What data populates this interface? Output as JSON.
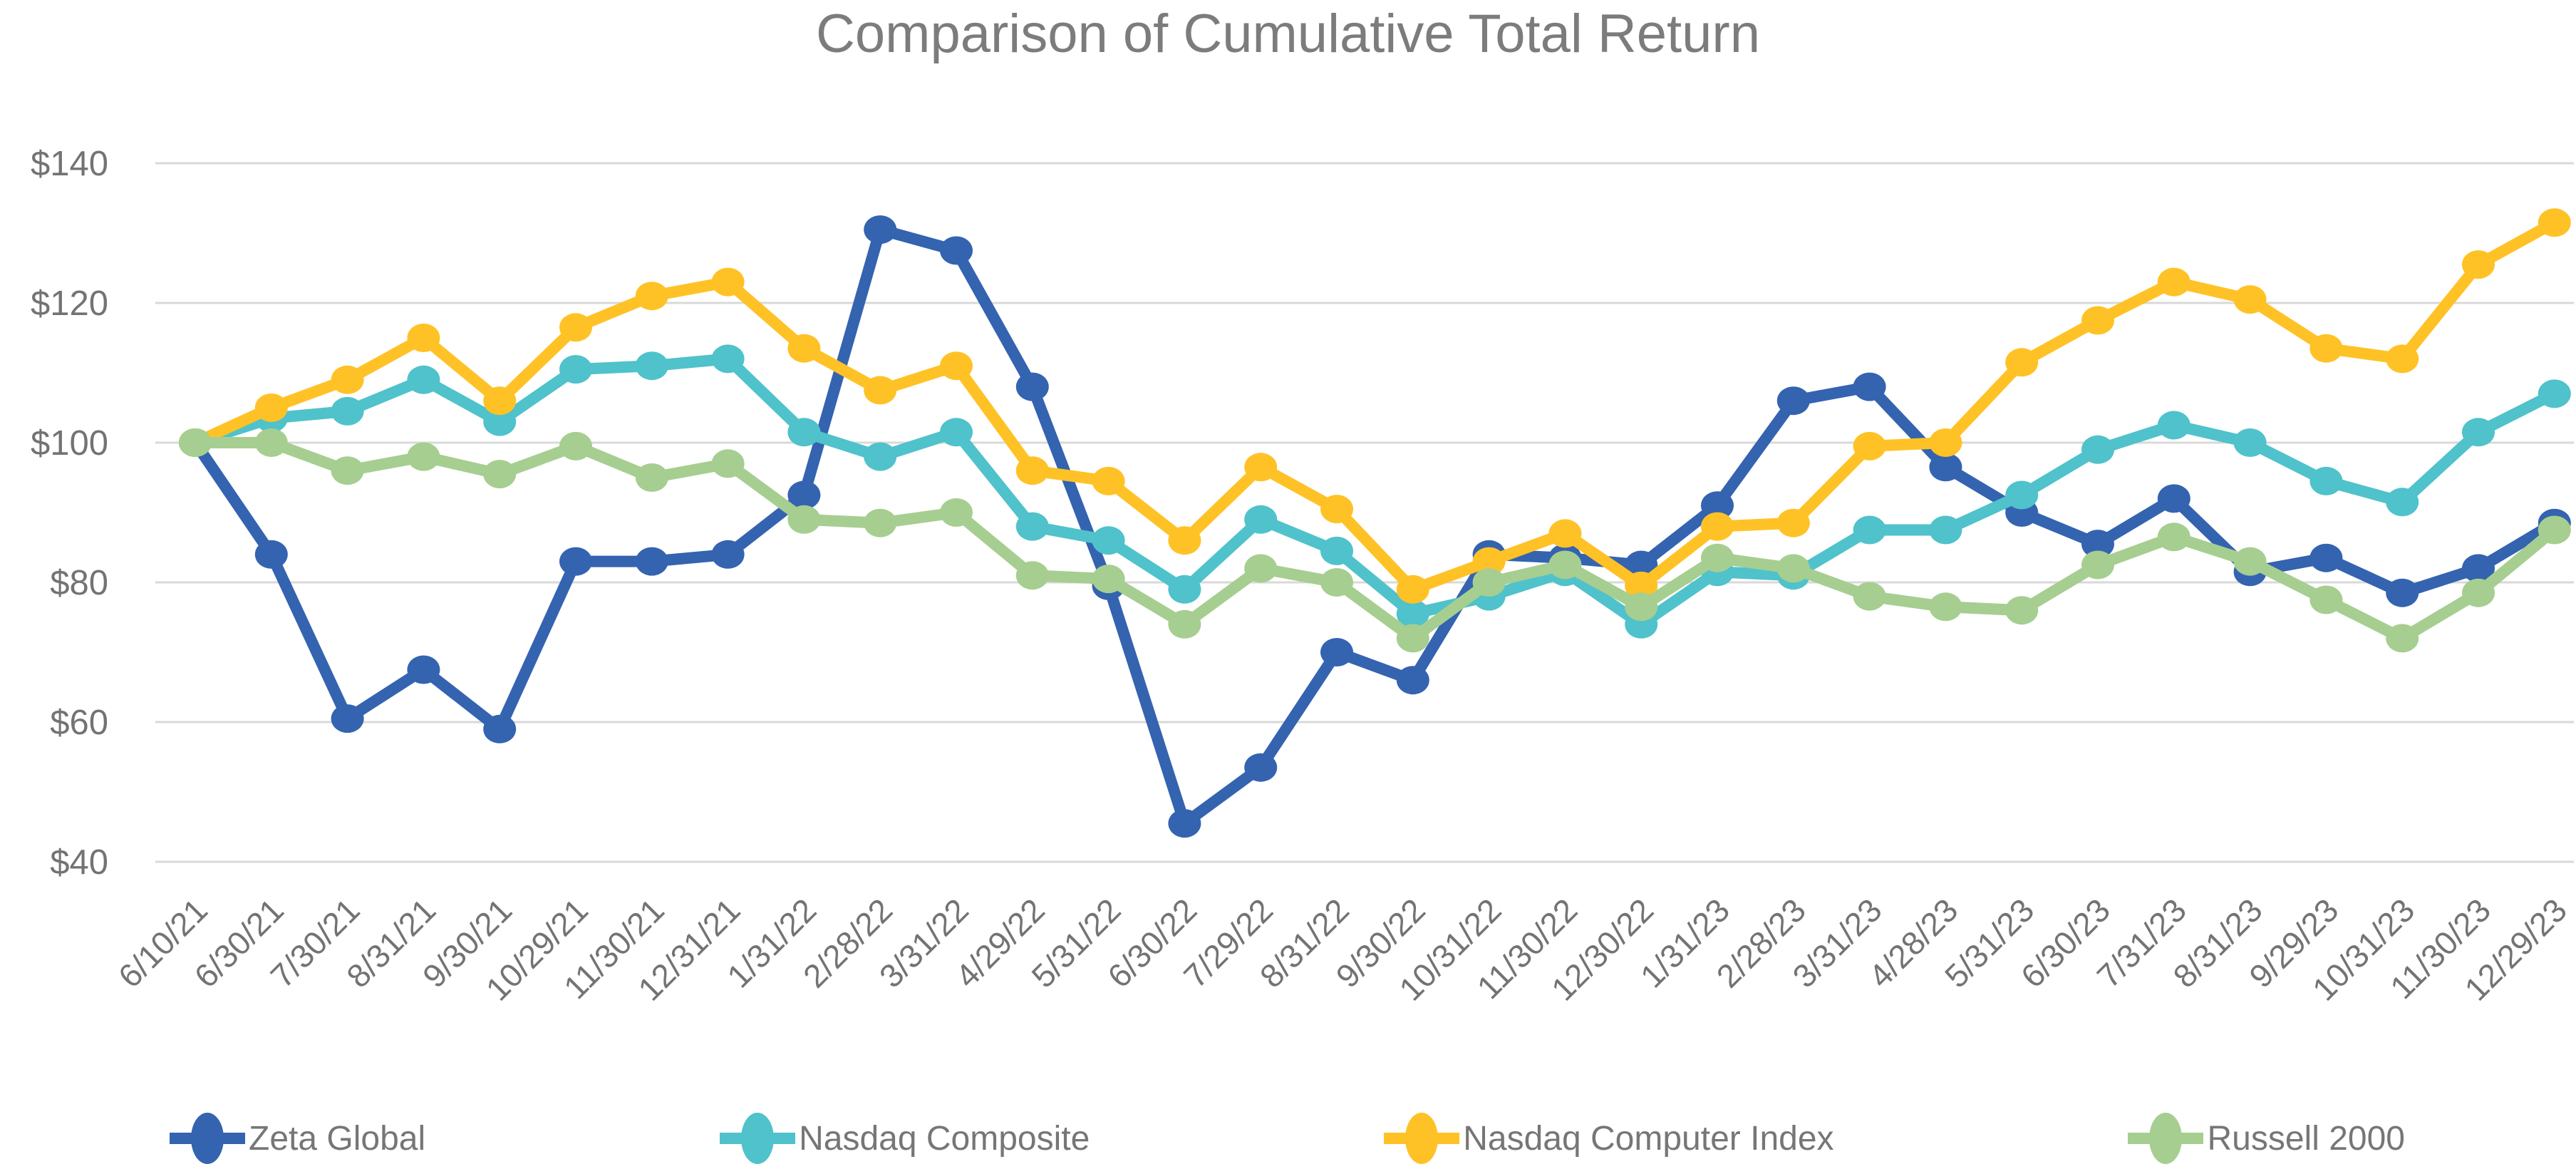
{
  "title": "Comparison of Cumulative Total Return",
  "chart_data": {
    "type": "line",
    "title": "Comparison of Cumulative Total Return",
    "grid": true,
    "legend_position": "bottom",
    "y_axis": {
      "ticks": [
        140,
        120,
        100,
        80,
        60,
        40
      ],
      "tick_prefix": "$",
      "range": [
        40,
        140
      ]
    },
    "categories": [
      "6/10/21",
      "6/30/21",
      "7/30/21",
      "8/31/21",
      "9/30/21",
      "10/29/21",
      "11/30/21",
      "12/31/21",
      "1/31/22",
      "2/28/22",
      "3/31/22",
      "4/29/22",
      "5/31/22",
      "6/30/22",
      "7/29/22",
      "8/31/22",
      "9/30/22",
      "10/31/22",
      "11/30/22",
      "12/30/22",
      "1/31/23",
      "2/28/23",
      "3/31/23",
      "4/28/23",
      "5/31/23",
      "6/30/23",
      "7/31/23",
      "8/31/23",
      "9/29/23",
      "10/31/23",
      "11/30/23",
      "12/29/23"
    ],
    "series": [
      {
        "name": "Zeta Global",
        "color": "#3463B0",
        "values": [
          100,
          84,
          60.5,
          67.5,
          59,
          83,
          83,
          84,
          92.5,
          130.5,
          127.5,
          108,
          79.5,
          45.5,
          53.5,
          70,
          66,
          84,
          83.5,
          82.5,
          91,
          106,
          108,
          96.5,
          90,
          85.5,
          92,
          81.5,
          83.5,
          78.5,
          82,
          88.5
        ]
      },
      {
        "name": "Nasdaq Composite",
        "color": "#4FC2CB",
        "values": [
          100,
          103.5,
          104.5,
          109,
          103,
          110.5,
          111,
          112,
          101.5,
          98,
          101.5,
          88,
          86,
          79,
          89,
          84.5,
          75.5,
          78,
          81.5,
          74,
          81.5,
          81,
          87.5,
          87.5,
          92.5,
          99,
          102.5,
          100,
          94.5,
          91.5,
          101.5,
          107
        ]
      },
      {
        "name": "Nasdaq Computer Index",
        "color": "#FFC226",
        "values": [
          100,
          105,
          109,
          115,
          106,
          116.5,
          121,
          123,
          113.5,
          107.5,
          111,
          96,
          94.5,
          86,
          96.5,
          90.5,
          79,
          83,
          87,
          79.5,
          88,
          88.5,
          99.5,
          100,
          111.5,
          117.5,
          123,
          120.5,
          113.5,
          112,
          125.5,
          131.5
        ]
      },
      {
        "name": "Russell 2000",
        "color": "#A6CE90",
        "values": [
          100,
          100,
          96,
          98,
          95.5,
          99.5,
          95,
          97,
          89,
          88.5,
          90,
          81,
          80.5,
          74,
          82,
          80,
          72,
          80,
          82.5,
          76.5,
          83.5,
          82,
          78,
          76.5,
          76,
          82.5,
          86.5,
          83,
          77.5,
          72,
          78.5,
          87.5
        ]
      }
    ],
    "colors": {
      "gridline": "#d9d9d9",
      "axis_text": "#737373",
      "title_text": "#7c7c7c"
    }
  }
}
